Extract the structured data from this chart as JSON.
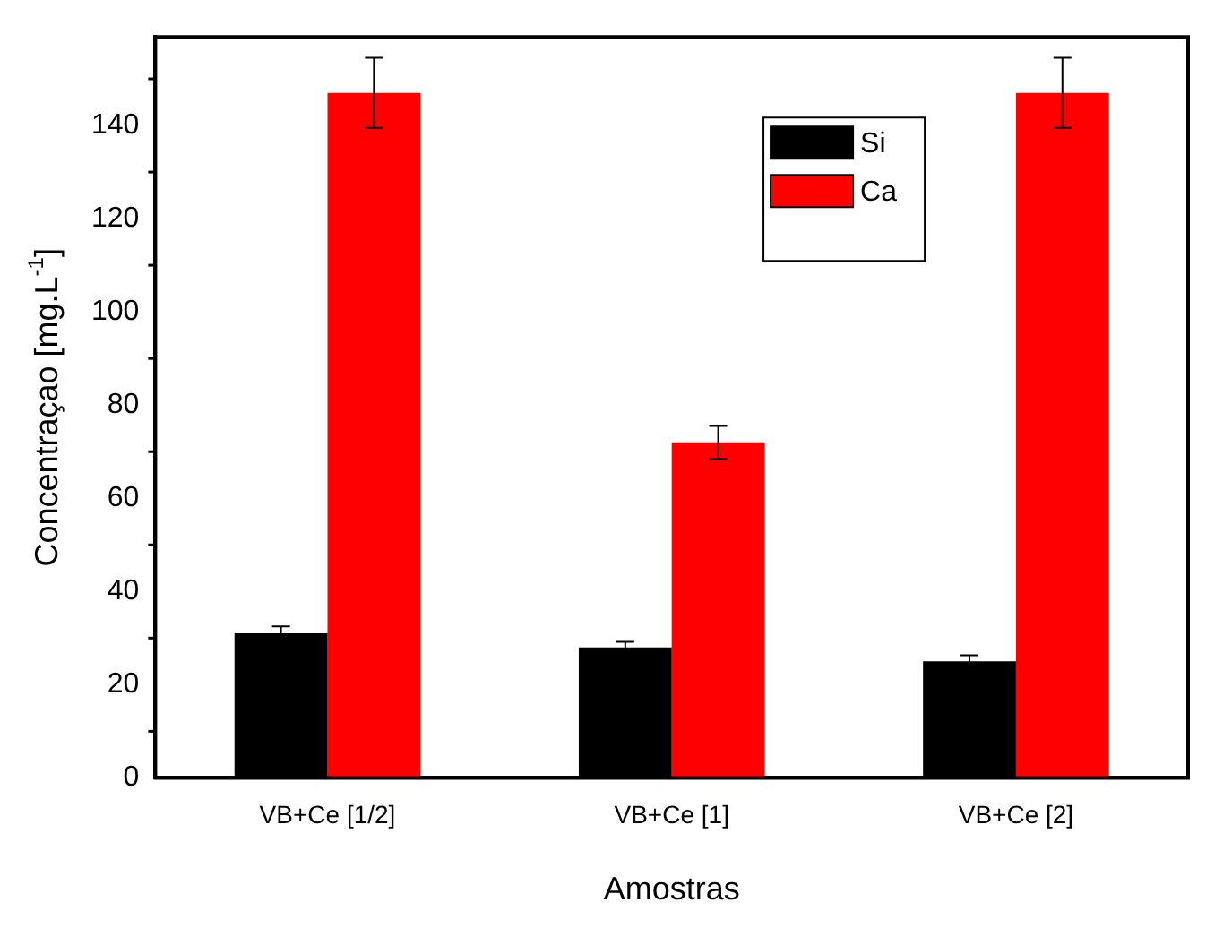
{
  "chart_data": {
    "type": "bar",
    "xlabel": "Amostras",
    "ylabel": "Concentraçao [mg.L$^{-1}$]",
    "categories": [
      "VB+Ce [1/2]",
      "VB+Ce [1]",
      "VB+Ce [2]"
    ],
    "series": [
      {
        "name": "Si",
        "color": "#000000",
        "values": [
          31,
          28,
          25
        ],
        "errors": [
          1.5,
          1.2,
          1.3
        ]
      },
      {
        "name": "Ca",
        "color": "#ff0000",
        "values": [
          147,
          72,
          147
        ],
        "errors": [
          7.5,
          3.5,
          7.5
        ]
      }
    ],
    "ylim": [
      0,
      159
    ],
    "yticks": [
      0,
      20,
      40,
      60,
      80,
      100,
      120,
      140
    ],
    "grid": false,
    "legend": "top right"
  }
}
